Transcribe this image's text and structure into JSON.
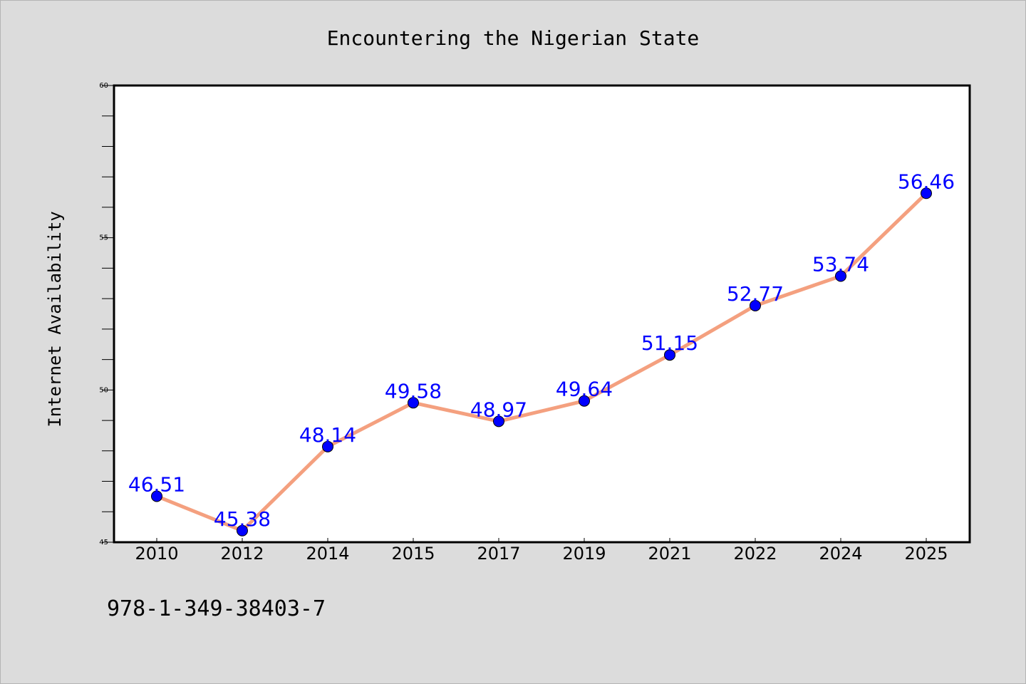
{
  "chart_data": {
    "type": "line",
    "title": "Encountering the Nigerian State",
    "ylabel": "Internet Availability",
    "xlabel": "",
    "categories": [
      "2010",
      "2012",
      "2014",
      "2015",
      "2017",
      "2019",
      "2021",
      "2022",
      "2024",
      "2025"
    ],
    "series": [
      {
        "values": [
          46.51,
          45.38,
          48.14,
          49.58,
          48.97,
          49.64,
          51.15,
          52.77,
          53.74,
          56.46
        ],
        "data_labels": [
          "46.51",
          "45.38",
          "48.14",
          "49.58",
          "48.97",
          "49.64",
          "51.15",
          "52.77",
          "53.74",
          "56.46"
        ]
      }
    ],
    "ylim": [
      45,
      60
    ],
    "yticks": [
      "45",
      "50",
      "55",
      "60"
    ],
    "ytick_values": [
      45,
      50,
      55,
      60
    ],
    "grid": false,
    "colors": {
      "line": "#f4a07f",
      "marker": "#0000ff",
      "data_label": "#0000ff",
      "background": "#dcdcdc",
      "plot_background": "#ffffff"
    }
  },
  "footnote": "978-1-349-38403-7"
}
